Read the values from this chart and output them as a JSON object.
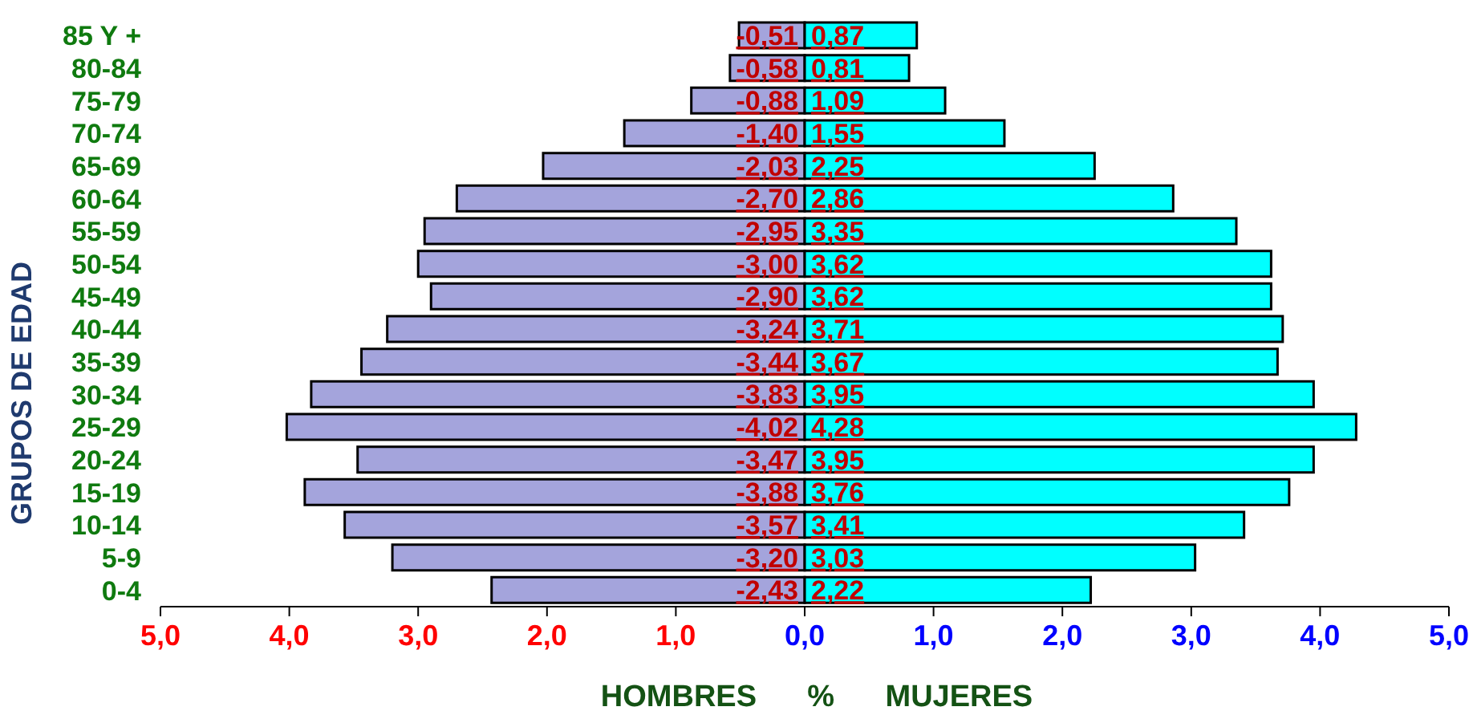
{
  "chart_data": {
    "type": "bar",
    "orientation": "horizontal",
    "stacked": true,
    "xlabel": "HOMBRES      %      MUJERES",
    "ylabel": "GRUPOS DE EDAD",
    "categories": [
      "85 Y +",
      "80-84",
      "75-79",
      "70-74",
      "65-69",
      "60-64",
      "55-59",
      "50-54",
      "45-49",
      "40-44",
      "35-39",
      "30-34",
      "25-29",
      "20-24",
      "15-19",
      "10-14",
      "5-9",
      "0-4"
    ],
    "series": [
      {
        "color": "#a4a4dc",
        "values": [
          -0.51,
          -0.58,
          -0.88,
          -1.4,
          -2.03,
          -2.7,
          -2.95,
          -3.0,
          -2.9,
          -3.24,
          -3.44,
          -3.83,
          -4.02,
          -3.47,
          -3.88,
          -3.57,
          -3.2,
          -2.43
        ],
        "value_labels": [
          "-0,51",
          "-0,58",
          "-0,88",
          "-1,40",
          "-2,03",
          "-2,70",
          "-2,95",
          "-3,00",
          "-2,90",
          "-3,24",
          "-3,44",
          "-3,83",
          "-4,02",
          "-3,47",
          "-3,88",
          "-3,57",
          "-3,20",
          "-2,43"
        ]
      },
      {
        "color": "#00ffff",
        "values": [
          0.87,
          0.81,
          1.09,
          1.55,
          2.25,
          2.86,
          3.35,
          3.62,
          3.62,
          3.71,
          3.67,
          3.95,
          4.28,
          3.95,
          3.76,
          3.41,
          3.03,
          2.22
        ],
        "value_labels": [
          "0,87",
          "0,81",
          "1,09",
          "1,55",
          "2,25",
          "2,86",
          "3,35",
          "3,62",
          "3,62",
          "3,71",
          "3,67",
          "3,95",
          "4,28",
          "3,95",
          "3,76",
          "3,41",
          "3,03",
          "2,22"
        ]
      }
    ],
    "xlim": [
      -5,
      5
    ],
    "xticks": [
      {
        "value": -5,
        "label": "5,0"
      },
      {
        "value": -4,
        "label": "4,0"
      },
      {
        "value": -3,
        "label": "3,0"
      },
      {
        "value": -2,
        "label": "2,0"
      },
      {
        "value": -1,
        "label": "1,0"
      },
      {
        "value": 0,
        "label": "0,0"
      },
      {
        "value": 1,
        "label": "1,0"
      },
      {
        "value": 2,
        "label": "2,0"
      },
      {
        "value": 3,
        "label": "3,0"
      },
      {
        "value": 4,
        "label": "4,0"
      },
      {
        "value": 5,
        "label": "5,0"
      }
    ],
    "grid": false,
    "legend": false
  }
}
